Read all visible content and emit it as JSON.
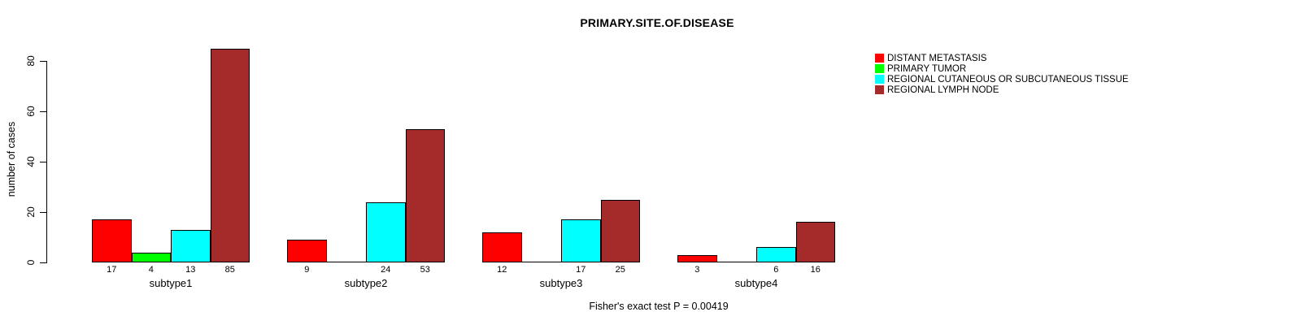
{
  "chart_data": {
    "type": "bar",
    "title": "PRIMARY.SITE.OF.DISEASE",
    "ylabel": "number of cases",
    "xlabel": "",
    "footnote": "Fisher's exact test P = 0.00419",
    "groups": [
      "subtype1",
      "subtype2",
      "subtype3",
      "subtype4"
    ],
    "series": [
      {
        "name": "DISTANT METASTASIS",
        "color": "#ff0000",
        "values": [
          17,
          9,
          12,
          3
        ]
      },
      {
        "name": "PRIMARY TUMOR",
        "color": "#00ff00",
        "values": [
          4,
          0,
          0,
          0
        ]
      },
      {
        "name": "REGIONAL CUTANEOUS OR SUBCUTANEOUS TISSUE",
        "color": "#00ffff",
        "values": [
          13,
          24,
          17,
          6
        ]
      },
      {
        "name": "REGIONAL LYMPH NODE",
        "color": "#a52a2a",
        "values": [
          85,
          53,
          25,
          16
        ]
      }
    ],
    "yticks": [
      0,
      20,
      40,
      60,
      80
    ],
    "ylim": [
      0,
      85
    ],
    "grid": false,
    "legend_position": "top-right",
    "bar_value_labels": "values shown under each bar; zero-value bars drawn as flat line and unlabeled",
    "axis_color": "#000000",
    "background_color": "#ffffff"
  }
}
